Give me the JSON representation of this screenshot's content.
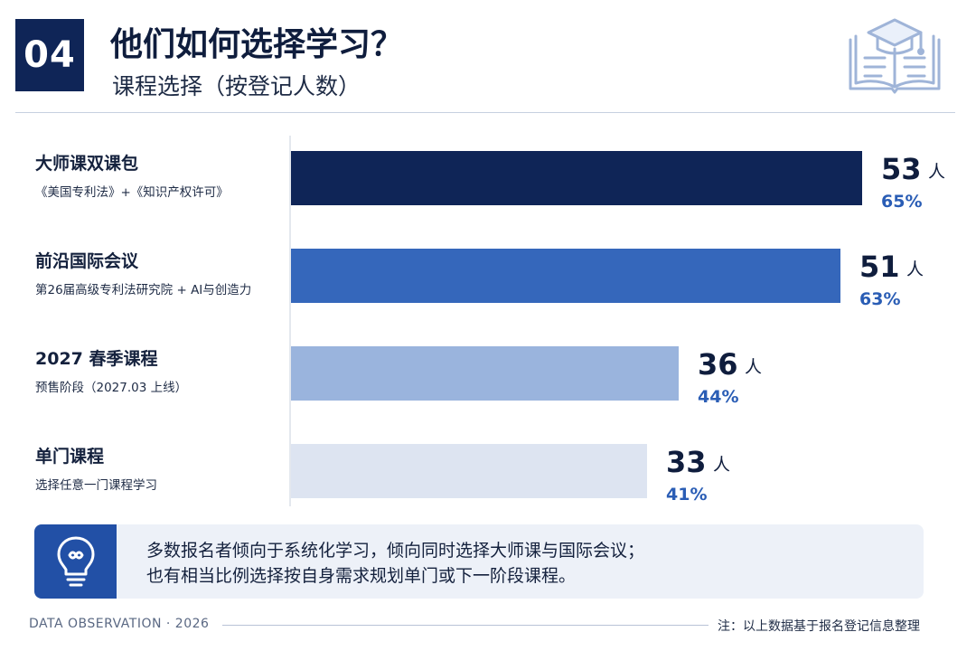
{
  "header": {
    "badge": "04",
    "title": "他们如何选择学习？",
    "subtitle": "课程选择（按登记人数）",
    "icon": "graduation-book-icon"
  },
  "chart_data": {
    "type": "bar",
    "orientation": "horizontal",
    "unit": "人",
    "xlim": [
      0,
      53
    ],
    "grid": false,
    "categories": [
      {
        "label": "大师课双课包",
        "sublabel": "《美国专利法》+《知识产权许可》",
        "value": 53,
        "percent": "65%",
        "color": "#0f2557"
      },
      {
        "label": "前沿国际会议",
        "sublabel": "第26届高级专利法研究院 + AI与创造力",
        "value": 51,
        "percent": "63%",
        "color": "#3567bb"
      },
      {
        "label": "2027 春季课程",
        "sublabel": "预售阶段（2027.03 上线）",
        "value": 36,
        "percent": "44%",
        "color": "#9ab4dd"
      },
      {
        "label": "单门课程",
        "sublabel": "选择任意一门课程学习",
        "value": 33,
        "percent": "41%",
        "color": "#dde4f1"
      }
    ]
  },
  "callout": {
    "icon": "lightbulb-icon",
    "line1": "多数报名者倾向于系统化学习，倾向同时选择大师课与国际会议；",
    "line2": "也有相当比例选择按自身需求规划单门或下一阶段课程。"
  },
  "footer": {
    "left": "DATA OBSERVATION · 2026",
    "right": "注：以上数据基于报名登记信息整理"
  },
  "colors": {
    "navy": "#0f2557",
    "accent": "#2250a6",
    "percent": "#2a5db5"
  }
}
